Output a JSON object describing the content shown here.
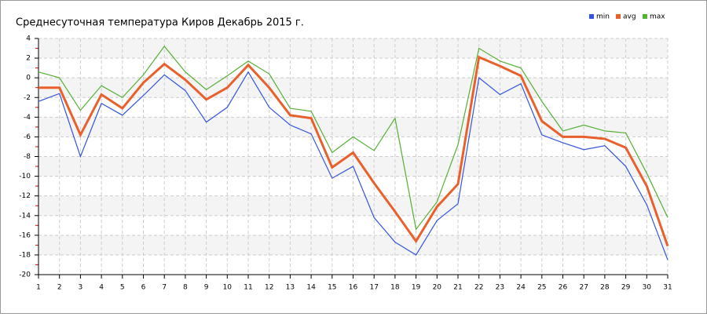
{
  "chart_data": {
    "type": "line",
    "title": "Среднесуточная температура Киров  Декабрь 2015 г.",
    "x": [
      1,
      2,
      3,
      4,
      5,
      6,
      7,
      8,
      9,
      10,
      11,
      12,
      13,
      14,
      15,
      16,
      17,
      18,
      19,
      20,
      21,
      22,
      23,
      24,
      25,
      26,
      27,
      28,
      29,
      30,
      31
    ],
    "series": [
      {
        "name": "min",
        "color": "#3355dd",
        "values": [
          -2.4,
          -1.6,
          -8.0,
          -2.6,
          -3.8,
          -1.8,
          0.3,
          -1.3,
          -4.5,
          -3.0,
          0.6,
          -3.0,
          -4.8,
          -5.7,
          -10.2,
          -9.0,
          -14.2,
          -16.7,
          -18.0,
          -14.5,
          -12.8,
          0.0,
          -1.7,
          -0.6,
          -5.8,
          -6.6,
          -7.3,
          -6.9,
          -9.0,
          -12.9,
          -18.5
        ]
      },
      {
        "name": "avg",
        "color": "#e8602c",
        "values": [
          -1.0,
          -1.0,
          -5.8,
          -1.7,
          -3.1,
          -0.5,
          1.4,
          -0.2,
          -2.2,
          -1.0,
          1.3,
          -1.0,
          -3.8,
          -4.1,
          -9.1,
          -7.6,
          -10.7,
          -13.6,
          -16.6,
          -13.1,
          -10.8,
          2.1,
          1.2,
          0.2,
          -4.4,
          -6.0,
          -6.0,
          -6.2,
          -7.1,
          -11.0,
          -17.1
        ]
      },
      {
        "name": "max",
        "color": "#55b035",
        "values": [
          0.6,
          0.0,
          -3.3,
          -0.8,
          -2.0,
          0.3,
          3.2,
          0.6,
          -1.2,
          0.2,
          1.7,
          0.4,
          -3.1,
          -3.4,
          -7.6,
          -6.0,
          -7.4,
          -4.1,
          -15.4,
          -12.6,
          -6.8,
          3.0,
          1.7,
          1.0,
          -2.4,
          -5.4,
          -4.8,
          -5.4,
          -5.6,
          -9.7,
          -14.2
        ]
      }
    ],
    "xlim": [
      1,
      31
    ],
    "xticks": [
      1,
      2,
      3,
      4,
      5,
      6,
      7,
      8,
      9,
      10,
      11,
      12,
      13,
      14,
      15,
      16,
      17,
      18,
      19,
      20,
      21,
      22,
      23,
      24,
      25,
      26,
      27,
      28,
      29,
      30,
      31
    ],
    "ylim": [
      -20,
      4
    ],
    "yticks": [
      -20,
      -18,
      -16,
      -14,
      -12,
      -10,
      -8,
      -6,
      -4,
      -2,
      0,
      2,
      4
    ],
    "grid": true,
    "legend": "top-right"
  }
}
